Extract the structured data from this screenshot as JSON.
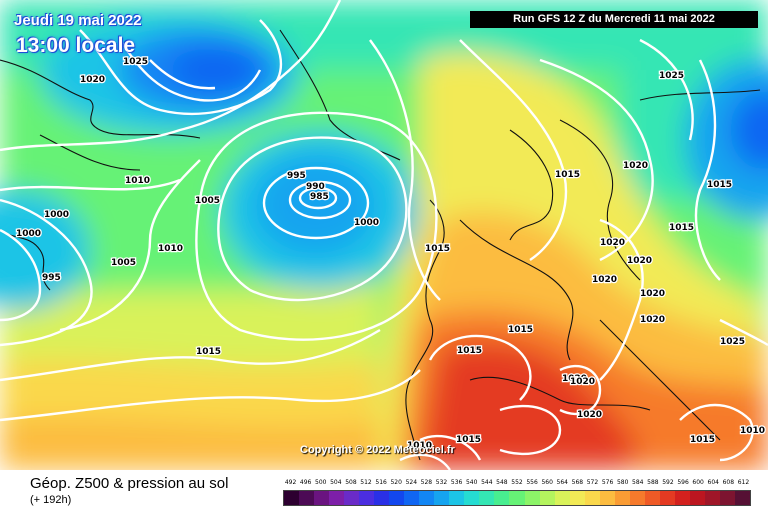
{
  "header": {
    "date_label": "Jeudi 19 mai 2022",
    "time_label": "13:00 locale",
    "run_label": "Run GFS 12 Z du Mercredi 11 mai 2022"
  },
  "copyright": "Copyright © 2022 Meteociel.fr",
  "footer": {
    "title": "Géop. Z500 & pression au sol",
    "subtitle": "(+ 192h)"
  },
  "isobar_labels": [
    "1025",
    "1020",
    "1010",
    "1000",
    "1000",
    "995",
    "1005",
    "1005",
    "1010",
    "995",
    "990",
    "985",
    "1000",
    "1015",
    "1025",
    "1020",
    "1015",
    "1015",
    "1015",
    "1020",
    "1020",
    "1020",
    "1020",
    "1020",
    "1015",
    "1015",
    "1020",
    "1020",
    "1025",
    "1015",
    "1010",
    "1010",
    "1015",
    "1015",
    "1015",
    "1020"
  ],
  "legend": {
    "tick_labels": [
      "492",
      "496",
      "500",
      "504",
      "508",
      "512",
      "516",
      "520",
      "524",
      "528",
      "532",
      "536",
      "540",
      "544",
      "548",
      "552",
      "556",
      "560",
      "564",
      "568",
      "572",
      "576",
      "580",
      "584",
      "588",
      "592",
      "596",
      "600",
      "604",
      "608",
      "612"
    ],
    "colors": [
      "#2d0030",
      "#4c0a55",
      "#6a1480",
      "#7d1fa8",
      "#6a2bc8",
      "#4b2ee0",
      "#2a30e6",
      "#1347ee",
      "#1066f2",
      "#1286f4",
      "#16a4ef",
      "#1cc4e6",
      "#25dcd2",
      "#34e6b4",
      "#48ee90",
      "#66f276",
      "#8cf468",
      "#b4f45e",
      "#d9f25a",
      "#f2ea56",
      "#fad84c",
      "#fcbc40",
      "#fa9c34",
      "#f67a2c",
      "#ef5a26",
      "#e43a22",
      "#d3211e",
      "#bc1620",
      "#9f1628",
      "#7d1430",
      "#561034"
    ]
  },
  "map_colors": {
    "isobar": "#ffffff",
    "coastline": "#111111",
    "low_center": "#1442d8",
    "high_center": "#e83a20"
  }
}
